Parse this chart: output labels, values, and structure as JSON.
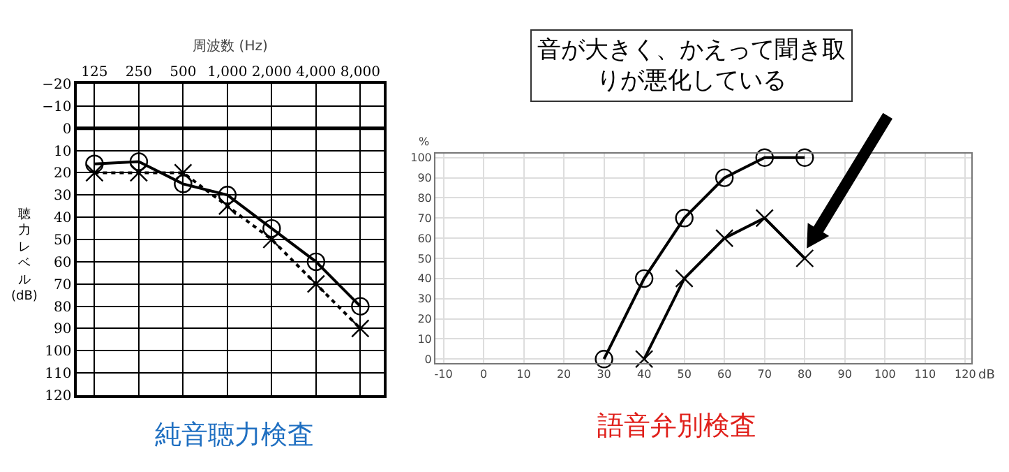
{
  "chart_data": [
    {
      "type": "line",
      "title": "純音聴力検査",
      "xlabel": "周波数 (Hz)",
      "ylabel": "聴力レベル (dB)",
      "categories": [
        "125",
        "250",
        "500",
        "1,000",
        "2,000",
        "4,000",
        "8,000"
      ],
      "series": [
        {
          "color": "#000000",
          "marker": "circle",
          "line_style": "solid",
          "values": [
            16,
            15,
            25,
            30,
            45,
            60,
            80
          ]
        },
        {
          "color": "#000000",
          "marker": "cross",
          "line_style": "dotted",
          "values": [
            20,
            20,
            20,
            35,
            50,
            70,
            90
          ]
        }
      ],
      "ylim": [
        120,
        -20
      ],
      "yticks": [
        {
          "value": -20,
          "label": "−20"
        },
        {
          "value": -10,
          "label": "−10"
        },
        0,
        10,
        20,
        30,
        40,
        50,
        60,
        70,
        80,
        90,
        100,
        110,
        120
      ],
      "ref_lines": [
        {
          "axis": "y",
          "value": 0,
          "color": "#000000"
        }
      ],
      "grid": true
    },
    {
      "type": "line",
      "title": "語音弁別検査",
      "xlabel": "dB",
      "ylabel": "%",
      "series": [
        {
          "color": "#000000",
          "marker": "circle",
          "line_style": "solid",
          "x": [
            30,
            40,
            50,
            60,
            70,
            80
          ],
          "values": [
            0,
            40,
            70,
            90,
            100,
            100
          ]
        },
        {
          "color": "#000000",
          "marker": "cross",
          "line_style": "solid",
          "x": [
            40,
            50,
            60,
            70,
            80
          ],
          "values": [
            0,
            40,
            60,
            70,
            50
          ]
        }
      ],
      "xlim": [
        -12,
        121.5
      ],
      "xticks": [
        -10,
        0,
        10,
        20,
        30,
        40,
        50,
        60,
        70,
        80,
        90,
        100,
        110,
        120
      ],
      "ylim": [
        -2,
        102
      ],
      "yticks": [
        0,
        10,
        20,
        30,
        40,
        50,
        60,
        70,
        80,
        90,
        100
      ],
      "annotations": [
        "音が大きく、かえって聞き取りが悪化している"
      ],
      "grid": true
    }
  ]
}
